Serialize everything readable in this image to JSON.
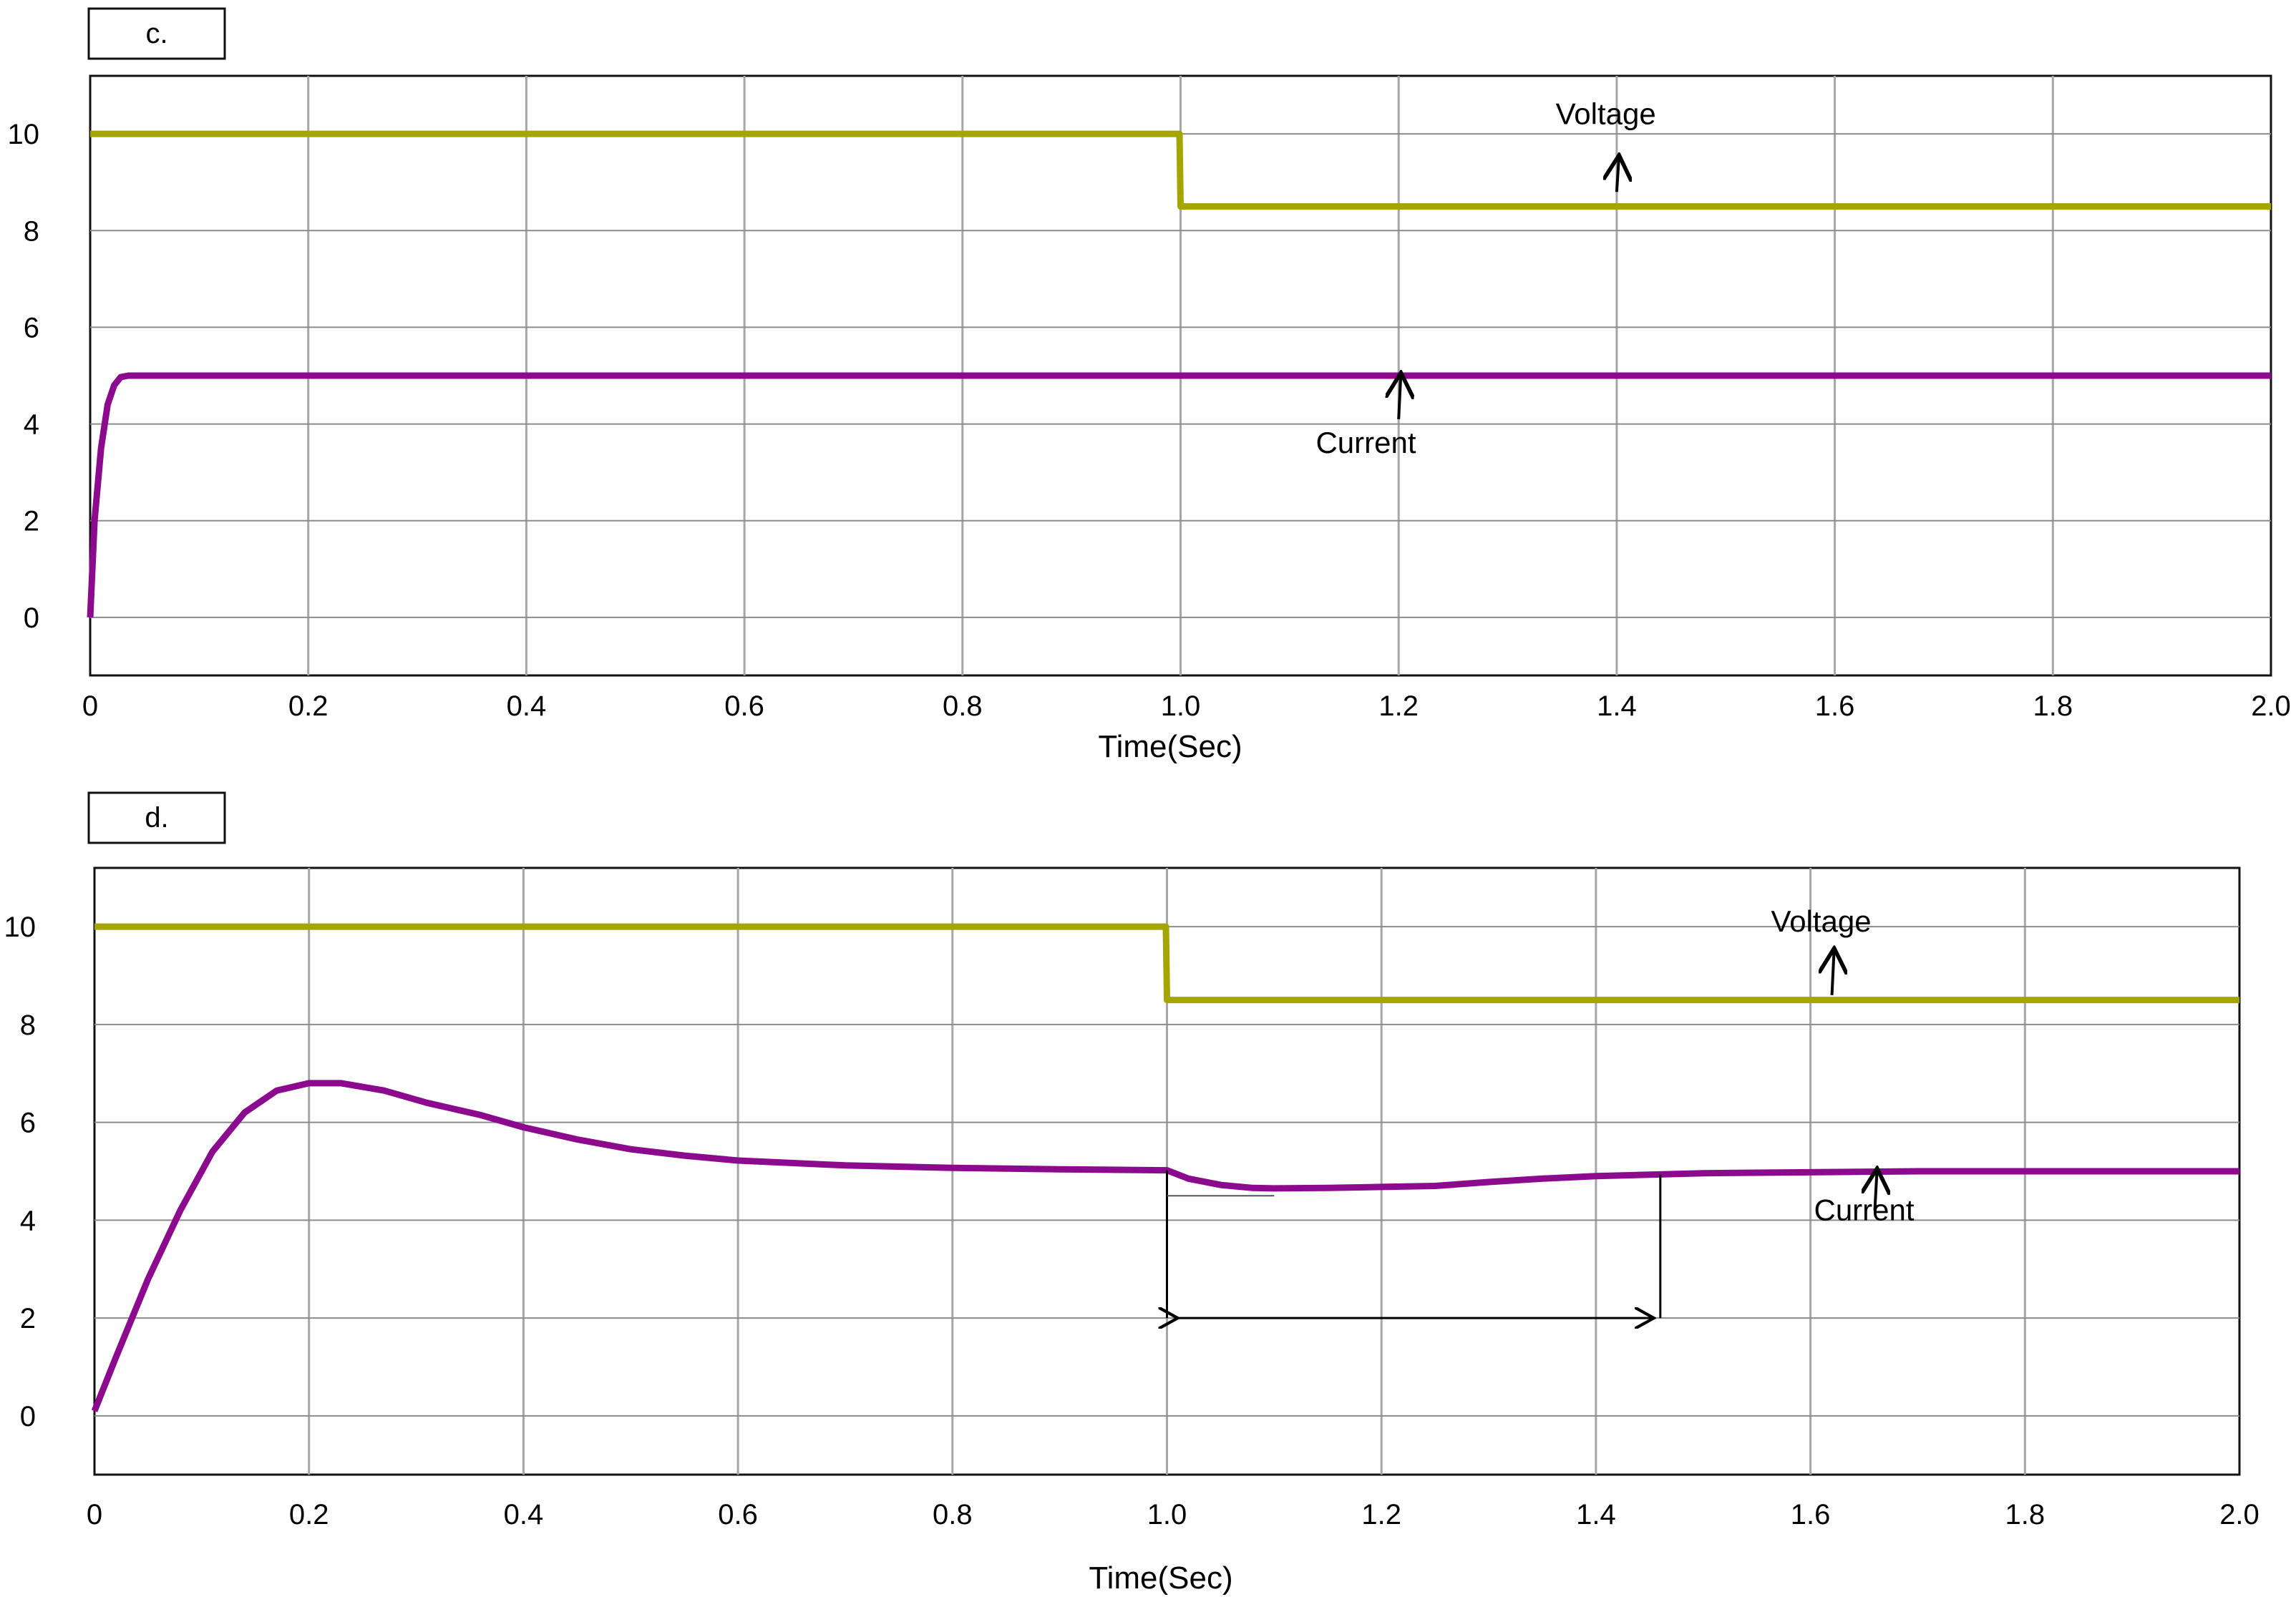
{
  "chart_data": [
    {
      "type": "line",
      "panel_label": "c.",
      "xlabel": "Time(Sec)",
      "ylabel": "",
      "xlim": [
        0,
        2.0
      ],
      "ylim": [
        -1.2,
        11.2
      ],
      "x_ticks": [
        0,
        0.2,
        0.4,
        0.6,
        0.8,
        1.0,
        1.2,
        1.4,
        1.6,
        1.8,
        2.0
      ],
      "x_tick_labels": [
        "0",
        "0.2",
        "0.4",
        "0.6",
        "0.8",
        "1.0",
        "1.2",
        "1.4",
        "1.6",
        "1.8",
        "2.0"
      ],
      "y_ticks": [
        0,
        2,
        4,
        6,
        8,
        10
      ],
      "y_tick_labels": [
        "0",
        "2",
        "4",
        "6",
        "8",
        "10"
      ],
      "grid": true,
      "series": [
        {
          "name": "Voltage",
          "color": "#a5a500",
          "x": [
            0,
            0.999,
            1.0,
            2.0
          ],
          "y": [
            10,
            10,
            8.5,
            8.5
          ]
        },
        {
          "name": "Current",
          "color": "#8b0a8e",
          "x": [
            0,
            0.004,
            0.01,
            0.016,
            0.022,
            0.028,
            0.035,
            0.5,
            1.0,
            1.5,
            2.0
          ],
          "y": [
            0,
            2.0,
            3.5,
            4.4,
            4.8,
            4.97,
            5.0,
            5.0,
            5.0,
            5.0,
            5.0
          ]
        }
      ],
      "annotations": [
        {
          "text": "Voltage",
          "arrow_x": 1.4,
          "arrow_y_from": 8.8,
          "arrow_y_to": 9.5,
          "text_x": 1.39,
          "text_y": 10.2
        },
        {
          "text": "Current",
          "arrow_x": 1.2,
          "arrow_y_from": 4.1,
          "arrow_y_to": 5.0,
          "text_x": 1.17,
          "text_y": 3.4
        }
      ]
    },
    {
      "type": "line",
      "panel_label": "d.",
      "xlabel": "Time(Sec)",
      "ylabel": "",
      "xlim": [
        0,
        2.0
      ],
      "ylim": [
        -1.2,
        11.2
      ],
      "x_ticks": [
        0,
        0.2,
        0.4,
        0.6,
        0.8,
        1.0,
        1.2,
        1.4,
        1.6,
        1.8,
        2.0
      ],
      "x_tick_labels": [
        "0",
        "0.2",
        "0.4",
        "0.6",
        "0.8",
        "1.0",
        "1.2",
        "1.4",
        "1.6",
        "1.8",
        "2.0"
      ],
      "y_ticks": [
        0,
        2,
        4,
        6,
        8,
        10
      ],
      "y_tick_labels": [
        "0",
        "2",
        "4",
        "6",
        "8",
        "10"
      ],
      "grid": true,
      "series": [
        {
          "name": "Voltage",
          "color": "#a5a500",
          "x": [
            0,
            0.999,
            1.0,
            2.0
          ],
          "y": [
            10,
            10,
            8.5,
            8.5
          ]
        },
        {
          "name": "Current",
          "color": "#8b0a8e",
          "x": [
            0,
            0.02,
            0.05,
            0.08,
            0.11,
            0.14,
            0.17,
            0.2,
            0.23,
            0.27,
            0.31,
            0.36,
            0.4,
            0.45,
            0.5,
            0.55,
            0.6,
            0.7,
            0.8,
            0.9,
            1.0,
            1.02,
            1.05,
            1.08,
            1.1,
            1.15,
            1.2,
            1.25,
            1.3,
            1.35,
            1.4,
            1.45,
            1.5,
            1.6,
            1.7,
            1.8,
            1.9,
            2.0
          ],
          "y": [
            0.1,
            1.2,
            2.8,
            4.2,
            5.4,
            6.2,
            6.65,
            6.8,
            6.8,
            6.65,
            6.4,
            6.15,
            5.9,
            5.65,
            5.45,
            5.32,
            5.22,
            5.12,
            5.07,
            5.04,
            5.02,
            4.85,
            4.72,
            4.66,
            4.65,
            4.66,
            4.68,
            4.7,
            4.78,
            4.85,
            4.9,
            4.93,
            4.96,
            4.98,
            5.0,
            5.0,
            5.0,
            5.0
          ]
        }
      ],
      "annotations": [
        {
          "text": "Voltage",
          "arrow_x": 1.62,
          "arrow_y_from": 8.6,
          "arrow_y_to": 9.5,
          "text_x": 1.61,
          "text_y": 9.9
        },
        {
          "text": "Current",
          "arrow_x": 1.66,
          "arrow_y_from": 4.2,
          "arrow_y_to": 5.0,
          "text_x": 1.65,
          "text_y": 4.0
        }
      ],
      "settling_marker": {
        "x_start": 1.0,
        "x_end": 1.46,
        "y_arrow": 2.0,
        "min_value": 4.5,
        "min_x_end": 1.1
      }
    }
  ]
}
